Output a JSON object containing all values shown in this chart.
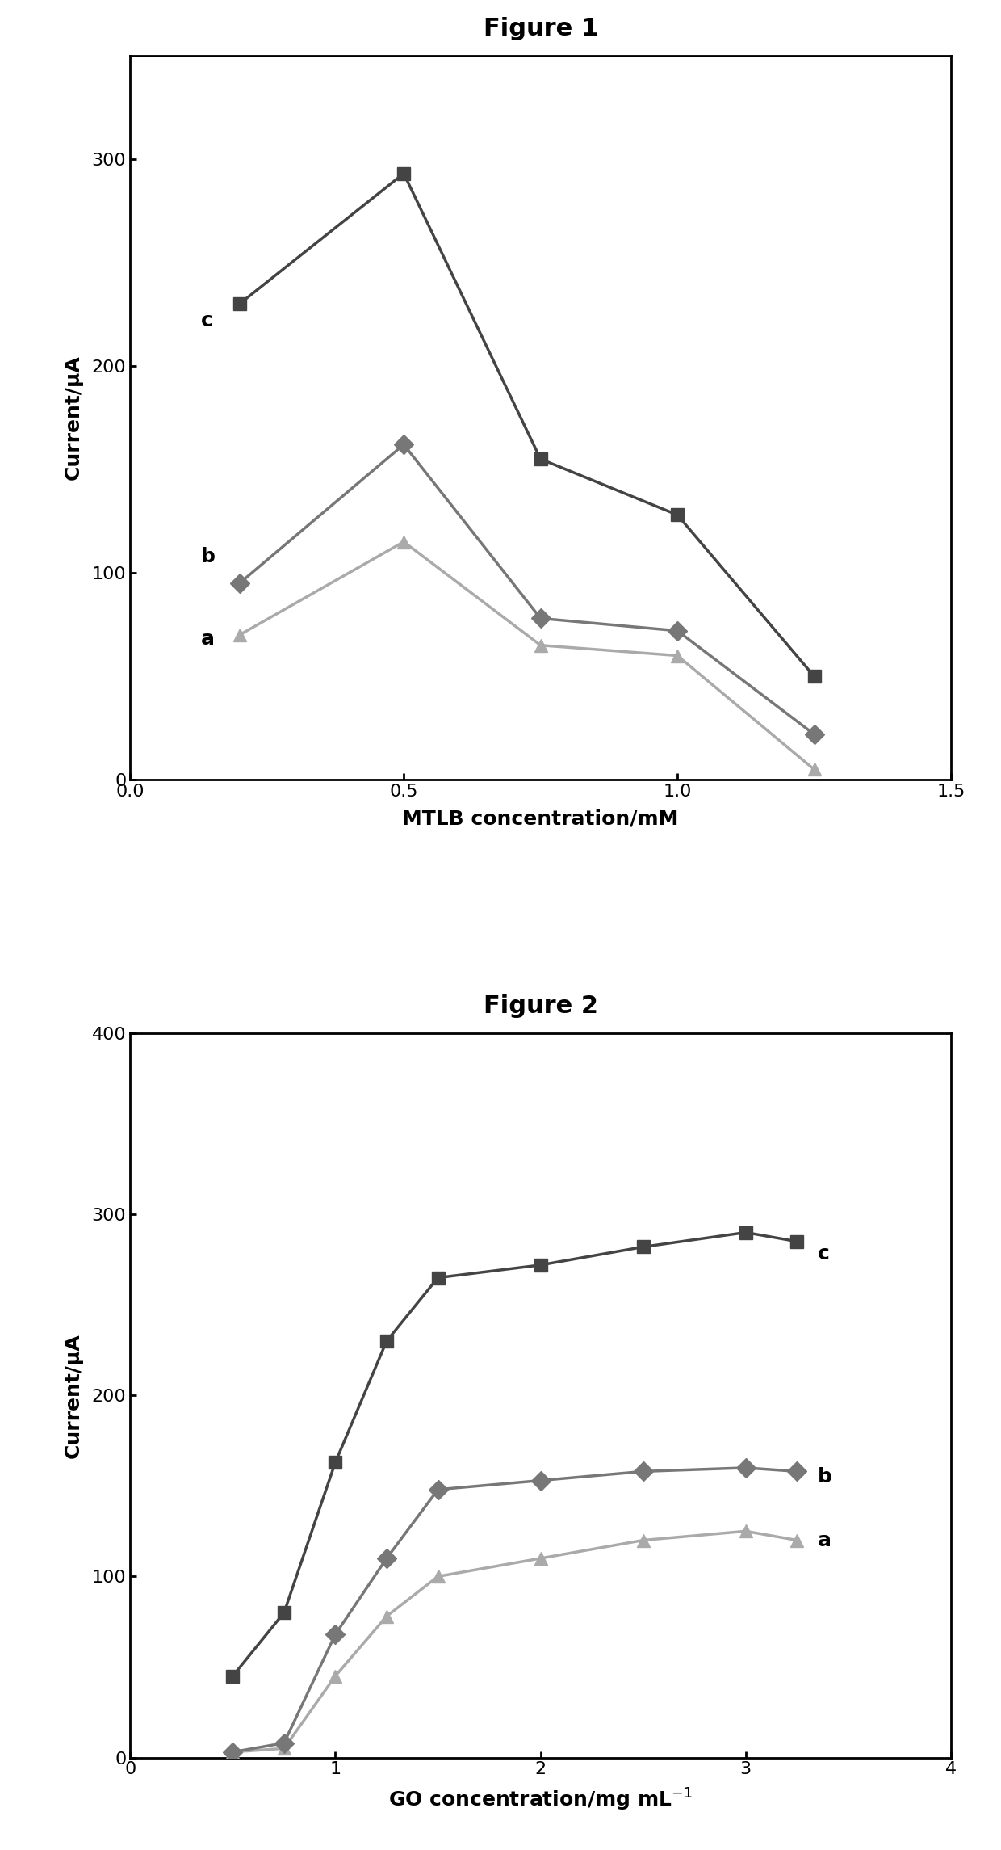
{
  "fig1": {
    "title": "Figure 1",
    "xlabel": "MTLB concentration/mM",
    "ylabel": "Current/μA",
    "xlim": [
      0,
      1.5
    ],
    "ylim": [
      0,
      350
    ],
    "xticks": [
      0,
      0.5,
      1.0,
      1.5
    ],
    "yticks": [
      0,
      100,
      200,
      300
    ],
    "series": {
      "a": {
        "x": [
          0.2,
          0.5,
          0.75,
          1.0,
          1.25
        ],
        "y": [
          70,
          115,
          65,
          60,
          5
        ],
        "marker": "^",
        "color": "#aaaaaa",
        "label": "a",
        "ann_x": 0.13,
        "ann_y": 68
      },
      "b": {
        "x": [
          0.2,
          0.5,
          0.75,
          1.0,
          1.25
        ],
        "y": [
          95,
          162,
          78,
          72,
          22
        ],
        "marker": "D",
        "color": "#777777",
        "label": "b",
        "ann_x": 0.13,
        "ann_y": 108
      },
      "c": {
        "x": [
          0.2,
          0.5,
          0.75,
          1.0,
          1.25
        ],
        "y": [
          230,
          293,
          155,
          128,
          50
        ],
        "marker": "s",
        "color": "#444444",
        "label": "c",
        "ann_x": 0.13,
        "ann_y": 222
      }
    }
  },
  "fig2": {
    "title": "Figure 2",
    "xlabel": "GO concentration/mg mL$^{-1}$",
    "ylabel": "Current/μA",
    "xlim": [
      0,
      4
    ],
    "ylim": [
      0,
      400
    ],
    "xticks": [
      0,
      1,
      2,
      3,
      4
    ],
    "yticks": [
      0,
      100,
      200,
      300,
      400
    ],
    "series": {
      "a": {
        "x": [
          0.5,
          0.75,
          1.0,
          1.25,
          1.5,
          2.0,
          2.5,
          3.0,
          3.25
        ],
        "y": [
          3,
          5,
          45,
          78,
          100,
          110,
          120,
          125,
          120
        ],
        "marker": "^",
        "color": "#aaaaaa",
        "label": "a",
        "ann_x": 3.35,
        "ann_y": 120
      },
      "b": {
        "x": [
          0.5,
          0.75,
          1.0,
          1.25,
          1.5,
          2.0,
          2.5,
          3.0,
          3.25
        ],
        "y": [
          3,
          8,
          68,
          110,
          148,
          153,
          158,
          160,
          158
        ],
        "marker": "D",
        "color": "#777777",
        "label": "b",
        "ann_x": 3.35,
        "ann_y": 155
      },
      "c": {
        "x": [
          0.5,
          0.75,
          1.0,
          1.25,
          1.5,
          2.0,
          2.5,
          3.0,
          3.25
        ],
        "y": [
          45,
          80,
          163,
          230,
          265,
          272,
          282,
          290,
          285
        ],
        "marker": "s",
        "color": "#444444",
        "label": "c",
        "ann_x": 3.35,
        "ann_y": 278
      }
    }
  },
  "fig_bg": "#f0f0f0",
  "title_fontsize": 22,
  "label_fontsize": 18,
  "tick_fontsize": 16,
  "ann_fontsize": 18,
  "markersize": 12,
  "linewidth": 2.5
}
